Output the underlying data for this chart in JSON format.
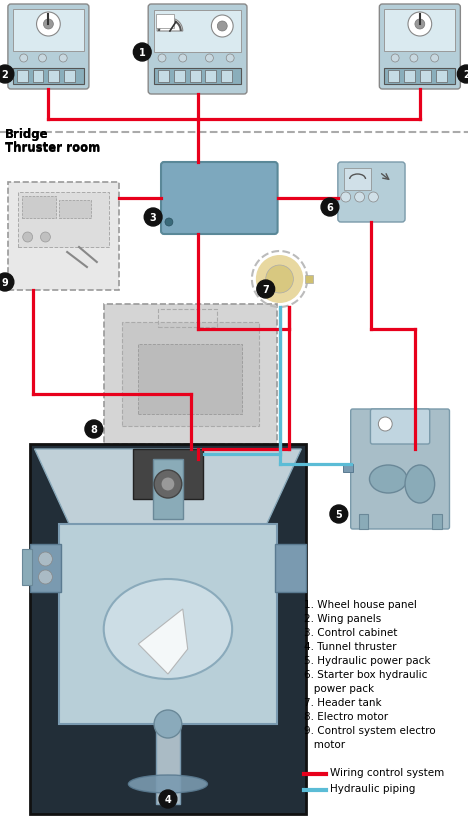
{
  "background_color": "#ffffff",
  "figsize": [
    4.74,
    8.29
  ],
  "dpi": 100,
  "red": "#e8001c",
  "blue": "#5bbcd6",
  "numbered_list": [
    "1. Wheel house panel",
    "2. Wing panels",
    "3. Control cabinet",
    "4. Tunnel thruster",
    "5. Hydraulic power pack",
    "6. Starter box hydraulic",
    "   power pack",
    "7. Header tank",
    "8. Electro motor",
    "9. Control system electro",
    "   motor"
  ],
  "legend_red_label": "Wiring control system",
  "legend_blue_label": "Hydraulic piping",
  "bridge_label": "Bridge",
  "thruster_room_label": "Thruster room"
}
